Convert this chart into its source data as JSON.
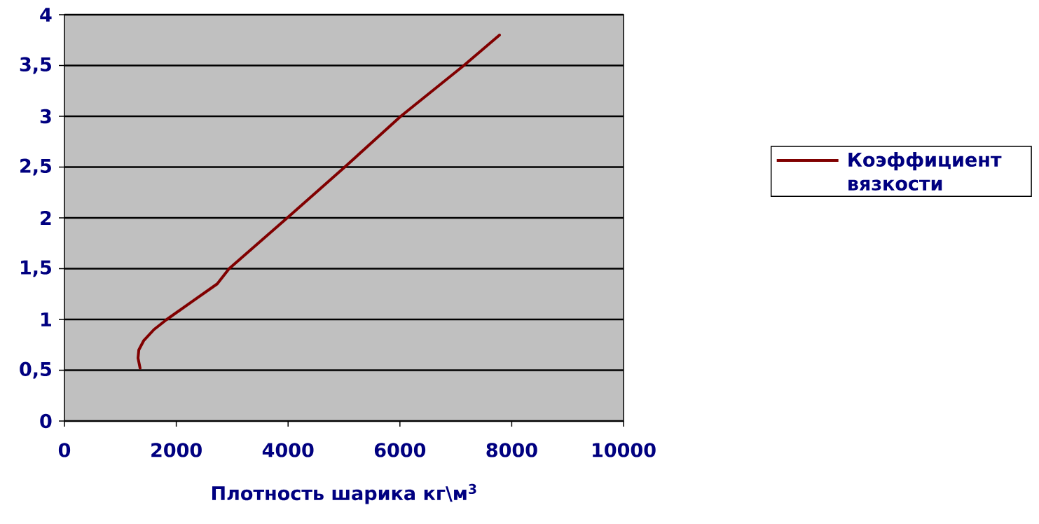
{
  "chart_data": {
    "type": "line",
    "xlabel": "Плотность шарика кг\\м$^{3}$",
    "x": [
      1353,
      1316,
      1330,
      1416,
      1600,
      1830,
      2293,
      2732,
      2945,
      3985,
      5013,
      6015,
      7143,
      7782
    ],
    "series": [
      {
        "name": "Коэффициент вязкости",
        "color": "#800000",
        "values": [
          0.52,
          0.62,
          0.7,
          0.79,
          0.9,
          1.0,
          1.18,
          1.35,
          1.5,
          2.0,
          2.5,
          3.0,
          3.5,
          3.8
        ]
      }
    ],
    "xlim": [
      0,
      10000
    ],
    "ylim": [
      0,
      4
    ],
    "xticks": [
      0,
      2000,
      4000,
      6000,
      8000,
      10000
    ],
    "yticks": [
      0,
      {
        "value": 0.5,
        "label": "0,5"
      },
      1,
      {
        "value": 1.5,
        "label": "1,5"
      },
      2,
      {
        "value": 2.5,
        "label": "2,5"
      },
      3,
      {
        "value": 3.5,
        "label": "3,5"
      },
      4
    ],
    "grid": "y",
    "legend": "right",
    "marker": "none",
    "line_style": "solid"
  }
}
